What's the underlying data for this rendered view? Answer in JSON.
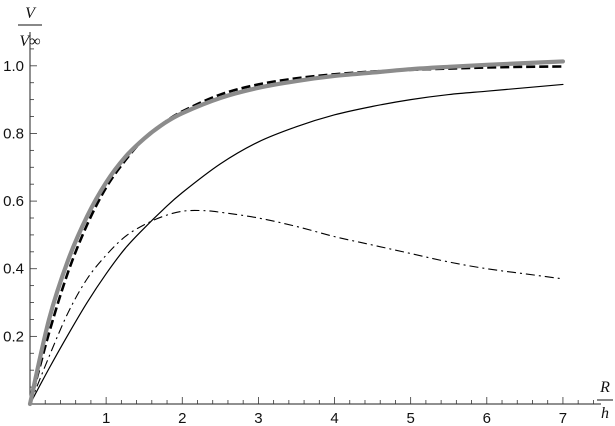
{
  "chart_data": {
    "type": "line",
    "title": "",
    "xlabel": {
      "numerator": "R",
      "denominator": "h"
    },
    "ylabel": {
      "numerator": "V",
      "denominator": "V∞"
    },
    "xlim": [
      0,
      7.5
    ],
    "ylim": [
      0,
      1.1
    ],
    "xticks": [
      1,
      2,
      3,
      4,
      5,
      6,
      7
    ],
    "yticks": [
      0.2,
      0.4,
      0.6,
      0.8,
      1.0
    ],
    "xtick_labels": [
      "1",
      "2",
      "3",
      "4",
      "5",
      "6",
      "7"
    ],
    "ytick_labels": [
      "0.2",
      "0.4",
      "0.6",
      "0.8",
      "1.0"
    ],
    "grid": false,
    "series": [
      {
        "style": "thin-solid",
        "color": "#000000",
        "x": [
          0,
          0.25,
          0.5,
          0.75,
          1,
          1.25,
          1.5,
          1.75,
          2,
          2.5,
          3,
          3.5,
          4,
          4.5,
          5,
          5.5,
          6,
          6.5,
          7
        ],
        "y": [
          0,
          0.105,
          0.205,
          0.3,
          0.385,
          0.46,
          0.52,
          0.575,
          0.625,
          0.71,
          0.775,
          0.82,
          0.855,
          0.88,
          0.9,
          0.915,
          0.925,
          0.935,
          0.945
        ]
      },
      {
        "style": "dash-dot",
        "color": "#000000",
        "x": [
          0,
          0.25,
          0.5,
          0.75,
          1,
          1.25,
          1.5,
          1.75,
          2,
          2.25,
          2.5,
          3,
          3.5,
          4,
          4.5,
          5,
          5.5,
          6,
          6.5,
          7
        ],
        "y": [
          0,
          0.14,
          0.27,
          0.37,
          0.44,
          0.495,
          0.53,
          0.555,
          0.57,
          0.572,
          0.567,
          0.55,
          0.525,
          0.495,
          0.47,
          0.445,
          0.42,
          0.4,
          0.385,
          0.37
        ]
      },
      {
        "style": "thick-dashed",
        "color": "#000000",
        "x": [
          0,
          0.25,
          0.5,
          0.75,
          1,
          1.25,
          1.5,
          1.75,
          2,
          2.5,
          3,
          3.5,
          4,
          4.5,
          5,
          5.5,
          6,
          6.5,
          7
        ],
        "y": [
          0,
          0.21,
          0.39,
          0.53,
          0.64,
          0.72,
          0.785,
          0.83,
          0.865,
          0.915,
          0.945,
          0.963,
          0.975,
          0.983,
          0.988,
          0.992,
          0.995,
          0.997,
          0.998
        ]
      },
      {
        "style": "thick-gray",
        "color": "#8c8c8c",
        "x": [
          0,
          0.25,
          0.5,
          0.75,
          1,
          1.25,
          1.5,
          1.75,
          2,
          2.5,
          3,
          3.5,
          4,
          4.5,
          5,
          5.5,
          6,
          6.5,
          7
        ],
        "y": [
          0,
          0.25,
          0.425,
          0.555,
          0.655,
          0.73,
          0.785,
          0.828,
          0.86,
          0.905,
          0.935,
          0.955,
          0.97,
          0.98,
          0.99,
          0.997,
          1.003,
          1.008,
          1.013
        ]
      }
    ]
  }
}
